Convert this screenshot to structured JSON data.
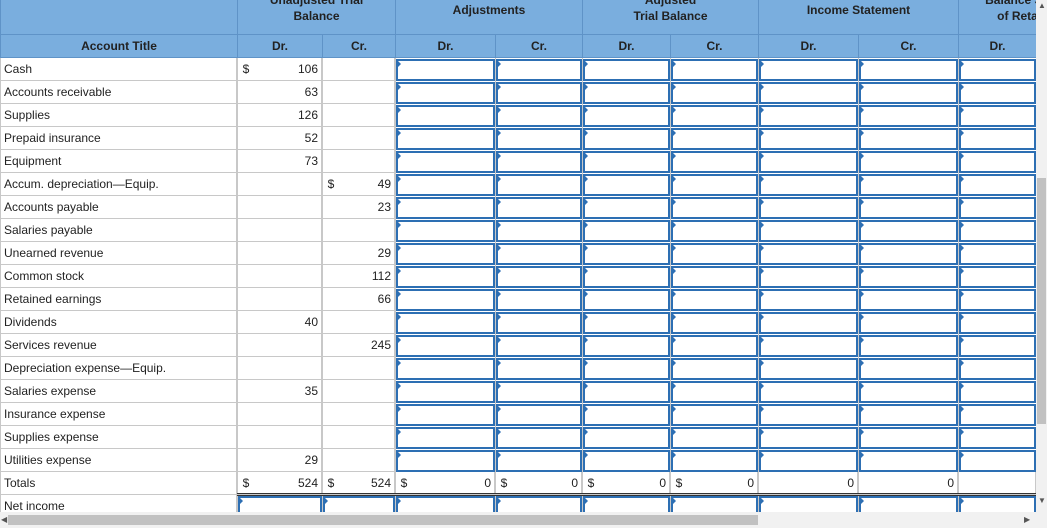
{
  "groups": {
    "unadjusted": [
      "Unadjusted Trial",
      "Balance"
    ],
    "adjustments": "Adjustments",
    "adjusted": [
      "Adjusted",
      "Trial Balance"
    ],
    "income": "Income Statement",
    "balance": [
      "Balance Sh",
      "of Reta"
    ]
  },
  "columns": {
    "account_title": "Account Title",
    "dr": "Dr.",
    "cr": "Cr."
  },
  "dollar": "$",
  "rows": [
    {
      "title": "Cash",
      "dr": "106",
      "cr": "",
      "dr_dollar": "$",
      "cr_dollar": ""
    },
    {
      "title": "Accounts receivable",
      "dr": "63",
      "cr": "",
      "dr_dollar": "",
      "cr_dollar": ""
    },
    {
      "title": "Supplies",
      "dr": "126",
      "cr": "",
      "dr_dollar": "",
      "cr_dollar": ""
    },
    {
      "title": "Prepaid insurance",
      "dr": "52",
      "cr": "",
      "dr_dollar": "",
      "cr_dollar": ""
    },
    {
      "title": "Equipment",
      "dr": "73",
      "cr": "",
      "dr_dollar": "",
      "cr_dollar": ""
    },
    {
      "title": "Accum. depreciation—Equip.",
      "dr": "",
      "cr": "49",
      "dr_dollar": "",
      "cr_dollar": "$"
    },
    {
      "title": "Accounts payable",
      "dr": "",
      "cr": "23",
      "dr_dollar": "",
      "cr_dollar": ""
    },
    {
      "title": "Salaries payable",
      "dr": "",
      "cr": "",
      "dr_dollar": "",
      "cr_dollar": ""
    },
    {
      "title": "Unearned revenue",
      "dr": "",
      "cr": "29",
      "dr_dollar": "",
      "cr_dollar": ""
    },
    {
      "title": "Common stock",
      "dr": "",
      "cr": "112",
      "dr_dollar": "",
      "cr_dollar": ""
    },
    {
      "title": "Retained earnings",
      "dr": "",
      "cr": "66",
      "dr_dollar": "",
      "cr_dollar": ""
    },
    {
      "title": "Dividends",
      "dr": "40",
      "cr": "",
      "dr_dollar": "",
      "cr_dollar": ""
    },
    {
      "title": "Services revenue",
      "dr": "",
      "cr": "245",
      "dr_dollar": "",
      "cr_dollar": ""
    },
    {
      "title": "Depreciation expense—Equip.",
      "dr": "",
      "cr": "",
      "dr_dollar": "",
      "cr_dollar": ""
    },
    {
      "title": "Salaries expense",
      "dr": "35",
      "cr": "",
      "dr_dollar": "",
      "cr_dollar": ""
    },
    {
      "title": "Insurance expense",
      "dr": "",
      "cr": "",
      "dr_dollar": "",
      "cr_dollar": ""
    },
    {
      "title": "Supplies expense",
      "dr": "",
      "cr": "",
      "dr_dollar": "",
      "cr_dollar": ""
    },
    {
      "title": "Utilities expense",
      "dr": "29",
      "cr": "",
      "dr_dollar": "",
      "cr_dollar": ""
    }
  ],
  "totals": {
    "label": "Totals",
    "unadjusted_dr": "524",
    "unadjusted_cr": "524",
    "adjustments_dr": "0",
    "adjustments_cr": "0",
    "adjusted_dr": "0",
    "adjusted_cr": "0",
    "income_dr": "0",
    "income_cr": "0"
  },
  "net_income": "Net income"
}
